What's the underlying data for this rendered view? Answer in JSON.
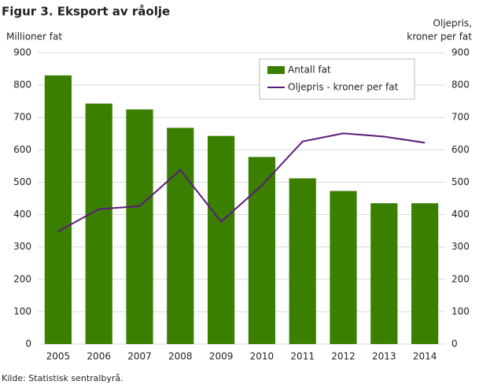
{
  "chart_data": {
    "type": "bar",
    "title": "Figur 3. Eksport av råolje",
    "y_label": "Millioner fat",
    "y2_label": [
      "Oljepris,",
      "kroner per fat"
    ],
    "source": "Kilde: Statistisk sentralbyrå.",
    "categories": [
      "2005",
      "2006",
      "2007",
      "2008",
      "2009",
      "2010",
      "2011",
      "2012",
      "2013",
      "2014"
    ],
    "series": [
      {
        "name": "Antall fat",
        "type": "bar",
        "color": "#3b7f00",
        "values": [
          830,
          743,
          725,
          668,
          643,
          578,
          512,
          473,
          435,
          435
        ]
      },
      {
        "name": "Oljepris - kroner per fat",
        "type": "line",
        "axis": "y2",
        "color": "#5b1b7b",
        "values": [
          348,
          417,
          426,
          538,
          378,
          490,
          626,
          651,
          641,
          622
        ]
      }
    ],
    "ylim": [
      0,
      900
    ],
    "yticks": [
      0,
      100,
      200,
      300,
      400,
      500,
      600,
      700,
      800,
      900
    ],
    "y2lim": [
      0,
      900
    ],
    "y2ticks": [
      0,
      100,
      200,
      300,
      400,
      500,
      600,
      700,
      800,
      900
    ],
    "grid": true,
    "legend": "top-right"
  }
}
